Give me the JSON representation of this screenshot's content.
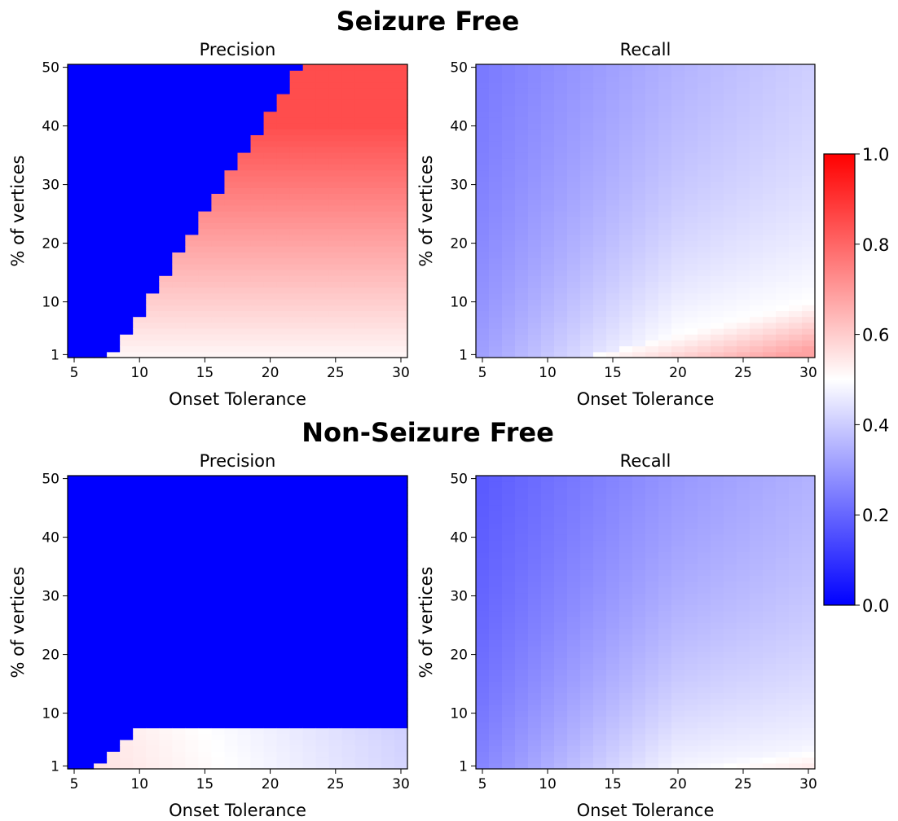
{
  "figure": {
    "section_titles": [
      "Seizure Free",
      "Non-Seizure Free"
    ]
  },
  "colors": {
    "low": "#0000ff",
    "mid": "#ffffff",
    "high": "#ff0000"
  },
  "chart_data": [
    {
      "type": "heatmap",
      "group": "Seizure Free",
      "title": "Precision",
      "xlabel": "Onset Tolerance",
      "ylabel": "% of vertices",
      "x_ticks": [
        5,
        10,
        15,
        20,
        25,
        30
      ],
      "y_ticks": [
        1,
        10,
        20,
        30,
        40,
        50
      ],
      "xlim": [
        4.5,
        30.5
      ],
      "ylim": [
        0.5,
        50.5
      ],
      "colormap": "bwr",
      "clim": [
        0,
        1
      ],
      "model": {
        "kind": "precision",
        "boundary_x0": 8,
        "boundary_slope": 0.29,
        "near_y": 0.05,
        "far_y": 0.8,
        "near_v": 0.52,
        "far_v": 0.85,
        "cutoff_y": null,
        "x_decay": 0
      }
    },
    {
      "type": "heatmap",
      "group": "Seizure Free",
      "title": "Recall",
      "xlabel": "Onset Tolerance",
      "ylabel": "% of vertices",
      "x_ticks": [
        5,
        10,
        15,
        20,
        25,
        30
      ],
      "y_ticks": [
        1,
        10,
        20,
        30,
        40,
        50
      ],
      "xlim": [
        4.5,
        30.5
      ],
      "ylim": [
        0.5,
        50.5
      ],
      "colormap": "bwr",
      "clim": [
        0,
        1
      ],
      "model": {
        "kind": "recall",
        "ridge_x0": 12,
        "ridge_slope": 0.55,
        "left_v": 0.22,
        "ridge_v": 0.5,
        "under_v": 0.68,
        "spread": 30
      }
    },
    {
      "type": "heatmap",
      "group": "Non-Seizure Free",
      "title": "Precision",
      "xlabel": "Onset Tolerance",
      "ylabel": "% of vertices",
      "x_ticks": [
        5,
        10,
        15,
        20,
        25,
        30
      ],
      "y_ticks": [
        1,
        10,
        20,
        30,
        40,
        50
      ],
      "xlim": [
        4.5,
        30.5
      ],
      "ylim": [
        0.5,
        50.5
      ],
      "colormap": "bwr",
      "clim": [
        0,
        1
      ],
      "model": {
        "kind": "precision",
        "boundary_x0": 6.5,
        "boundary_slope": 0.55,
        "near_y": 0.6,
        "far_y": 0.6,
        "near_v": 0.56,
        "far_v": 0.42,
        "cutoff_y": 7,
        "x_decay": 0.006
      }
    },
    {
      "type": "heatmap",
      "group": "Non-Seizure Free",
      "title": "Recall",
      "xlabel": "Onset Tolerance",
      "ylabel": "% of vertices",
      "x_ticks": [
        5,
        10,
        15,
        20,
        25,
        30
      ],
      "y_ticks": [
        1,
        10,
        20,
        30,
        40,
        50
      ],
      "xlim": [
        4.5,
        30.5
      ],
      "ylim": [
        0.5,
        50.5
      ],
      "colormap": "bwr",
      "clim": [
        0,
        1
      ],
      "model": {
        "kind": "recall",
        "ridge_x0": 18,
        "ridge_slope": 0.35,
        "left_v": 0.15,
        "ridge_v": 0.48,
        "under_v": 0.62,
        "spread": 35
      }
    }
  ],
  "colorbar": {
    "ticks": [
      "0.0",
      "0.2",
      "0.4",
      "0.6",
      "0.8",
      "1.0"
    ],
    "range": [
      0,
      1
    ]
  }
}
